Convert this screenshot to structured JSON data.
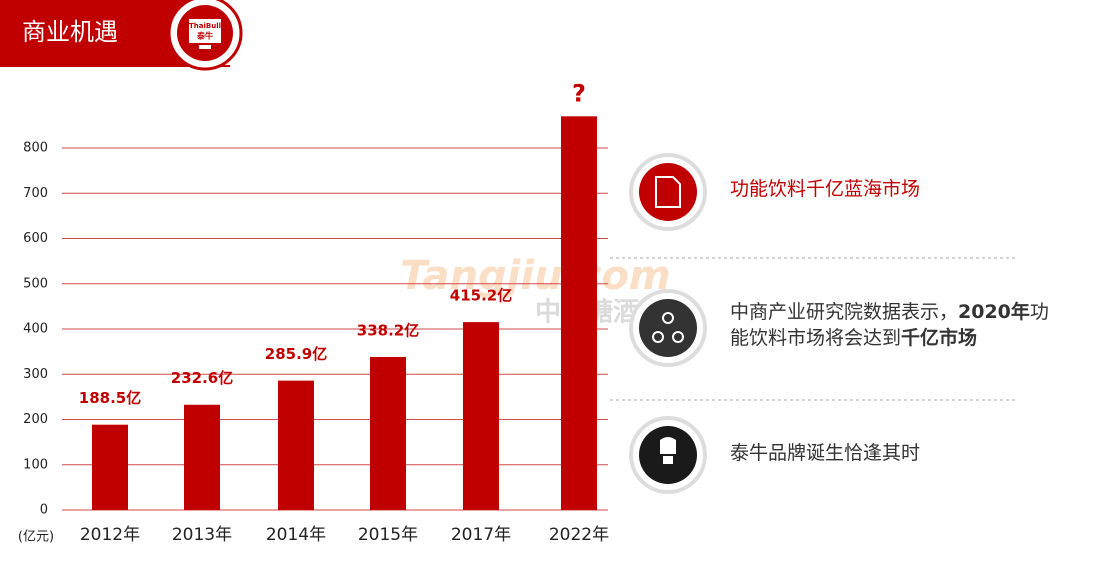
{
  "header": {
    "title": "商业机遇",
    "logo_top": "ThaiBull",
    "logo_bottom": "泰牛"
  },
  "watermark": {
    "top": "Tangjiu.com",
    "bottom": "中国糖酒网"
  },
  "chart_data": {
    "type": "bar",
    "categories": [
      "2012年",
      "2013年",
      "2014年",
      "2015年",
      "2017年",
      "2022年"
    ],
    "values": [
      188.5,
      232.6,
      285.9,
      338.2,
      415.2,
      870
    ],
    "value_labels": [
      "188.5亿",
      "232.6亿",
      "285.9亿",
      "338.2亿",
      "415.2亿",
      null
    ],
    "annotation": "?",
    "y_unit": "(亿元)",
    "color": "#c00000",
    "ylim": [
      0,
      900
    ],
    "yticks": [
      0,
      100,
      200,
      300,
      400,
      500,
      600,
      700,
      800
    ],
    "grid": true
  },
  "callouts": [
    {
      "color": "#c00000",
      "parts": [
        {
          "text": "功能饮料千亿蓝海市场",
          "bold": false
        }
      ]
    },
    {
      "color": "#333333",
      "parts": [
        {
          "text": "中商产业研究院数据表示，",
          "bold": false
        },
        {
          "text": "2020年",
          "bold": true
        },
        {
          "text": "功能饮料市场将会达到",
          "bold": false
        },
        {
          "text": "千亿市场",
          "bold": true
        }
      ]
    },
    {
      "color": "#333333",
      "parts": [
        {
          "text": "泰牛品牌诞生恰逢其时",
          "bold": false
        }
      ]
    }
  ]
}
